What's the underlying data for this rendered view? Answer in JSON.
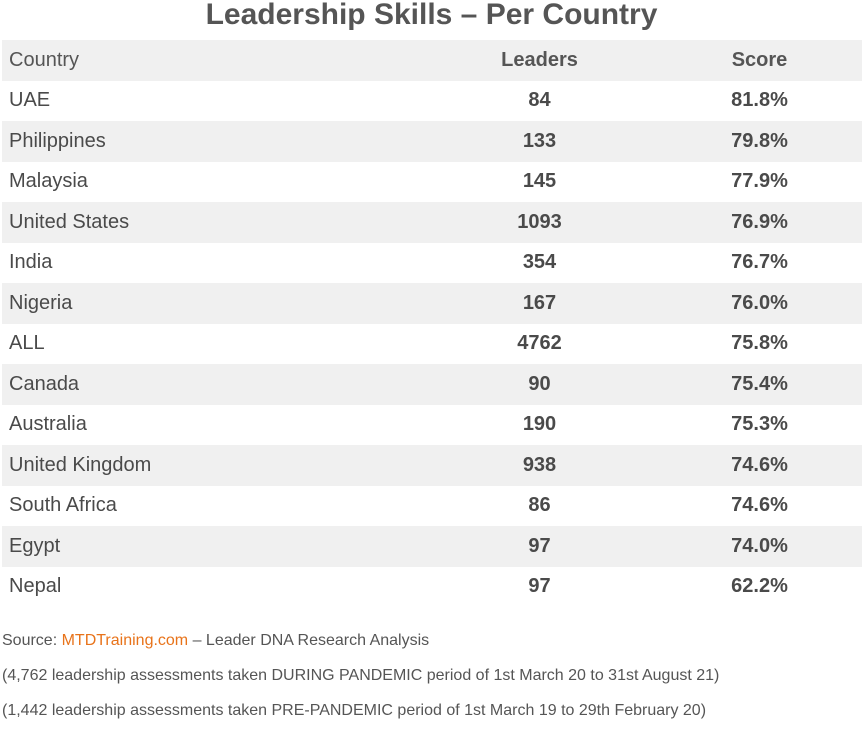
{
  "chart_data": {
    "type": "table",
    "title": "Leadership Skills – Per Country",
    "columns": [
      "Country",
      "Leaders",
      "Score"
    ],
    "rows": [
      {
        "country": "UAE",
        "leaders": "84",
        "score": "81.8%"
      },
      {
        "country": "Philippines",
        "leaders": "133",
        "score": "79.8%"
      },
      {
        "country": "Malaysia",
        "leaders": "145",
        "score": "77.9%"
      },
      {
        "country": "United States",
        "leaders": "1093",
        "score": "76.9%"
      },
      {
        "country": "India",
        "leaders": "354",
        "score": "76.7%"
      },
      {
        "country": "Nigeria",
        "leaders": "167",
        "score": "76.0%"
      },
      {
        "country": "ALL",
        "leaders": "4762",
        "score": "75.8%"
      },
      {
        "country": "Canada",
        "leaders": "90",
        "score": "75.4%"
      },
      {
        "country": "Australia",
        "leaders": "190",
        "score": "75.3%"
      },
      {
        "country": "United Kingdom",
        "leaders": "938",
        "score": "74.6%"
      },
      {
        "country": "South Africa",
        "leaders": "86",
        "score": "74.6%"
      },
      {
        "country": "Egypt",
        "leaders": "97",
        "score": "74.0%"
      },
      {
        "country": "Nepal",
        "leaders": "97",
        "score": "62.2%"
      }
    ]
  },
  "notes": {
    "source_prefix": "Source: ",
    "source_link": "MTDTraining.com",
    "source_suffix": " – Leader DNA Research Analysis",
    "line2": "(4,762 leadership assessments taken DURING PANDEMIC period of 1st March 20 to 31st August 21)",
    "line3": "(1,442 leadership assessments taken PRE-PANDEMIC period of 1st March 19 to 29th February 20)"
  },
  "colors": {
    "link": "#e8731a",
    "stripe": "#f0f0f0"
  }
}
